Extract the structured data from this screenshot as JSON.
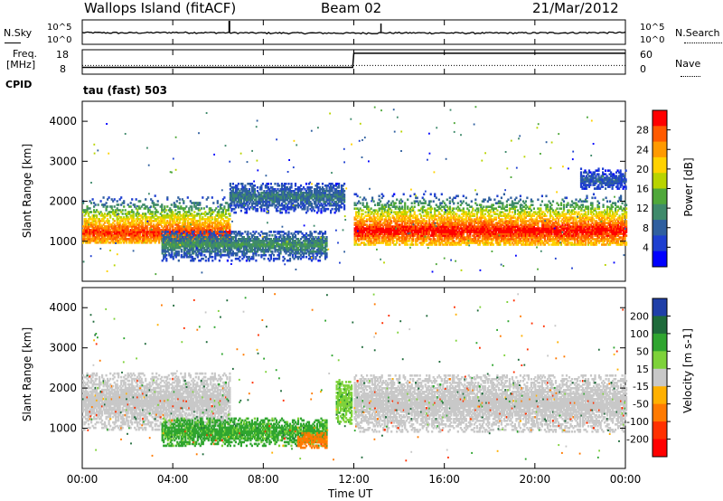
{
  "header": {
    "title": "Wallops Island (fitACF)",
    "beam": "Beam 02",
    "date": "21/Mar/2012"
  },
  "aux": {
    "nsky_label": "N.Sky",
    "nsearch_label": "N.Search",
    "noise_ticks": [
      "10^5",
      "10^0"
    ],
    "freq_label_line1": "Freq.",
    "freq_label_line2": "[MHz]",
    "freq_ticks": [
      "18",
      "8"
    ],
    "nave_label": "Nave",
    "nave_ticks": [
      "60",
      "0"
    ],
    "cpid_label": "CPID",
    "cpid_value": "tau (fast) 503"
  },
  "panels": {
    "ylabel": "Slant Range [km]",
    "xlabel": "Time UT"
  },
  "power_scale": {
    "label": "Power [dB]",
    "ticks": [
      "28",
      "24",
      "20",
      "16",
      "12",
      "8",
      "4"
    ],
    "colors": [
      "#ff0000",
      "#ff5a00",
      "#ff9a00",
      "#ffd200",
      "#b8d400",
      "#4fa83a",
      "#3f8a6b",
      "#2f5f9f",
      "#1e3fd0",
      "#0000ff"
    ]
  },
  "velocity_scale": {
    "label": "Velocity [m s-1]",
    "ticks": [
      "200",
      "100",
      "50",
      "15",
      "-15",
      "-50",
      "-100",
      "-200"
    ],
    "colors": [
      "#1f3fa8",
      "#1e6a3a",
      "#2fa52f",
      "#7ed23a",
      "#c8c8c8",
      "#ffb000",
      "#ff7a00",
      "#ff3000",
      "#ff0000"
    ]
  },
  "chart_data": [
    {
      "type": "line",
      "title": "N.Sky / N.Search",
      "x_ticks": [
        "00:00",
        "04:00",
        "08:00",
        "12:00",
        "16:00",
        "20:00",
        "00:00"
      ],
      "xlim": [
        0,
        24
      ],
      "series": [
        {
          "name": "N.Sky",
          "x": [
            0,
            2,
            4,
            6,
            8,
            10,
            12,
            14,
            16,
            18,
            20,
            22,
            24
          ],
          "y": [
            300,
            250,
            320,
            280,
            240,
            230,
            220,
            260,
            240,
            230,
            250,
            280,
            300
          ]
        }
      ],
      "ylim": [
        1,
        100000
      ],
      "yscale": "log"
    },
    {
      "type": "line",
      "title": "Freq. / Nave",
      "x": [
        0,
        11.95,
        12.0,
        24
      ],
      "series": [
        {
          "name": "Freq.",
          "x": [
            0,
            11.95,
            12.0,
            24
          ],
          "y": [
            10.5,
            10.5,
            16.5,
            16.5
          ]
        },
        {
          "name": "Nave",
          "x": [
            0,
            24
          ],
          "y": [
            20,
            20
          ]
        }
      ],
      "ylim_freq": [
        8,
        18
      ],
      "ylim_nave": [
        0,
        60
      ]
    },
    {
      "type": "heatmap",
      "title": "Power [dB]",
      "x_ticks": [
        "00:00",
        "04:00",
        "08:00",
        "12:00",
        "16:00",
        "20:00",
        "00:00"
      ],
      "y_ticks": [
        "1000",
        "2000",
        "3000",
        "4000"
      ],
      "xlim": [
        0,
        24
      ],
      "ylim": [
        0,
        4500
      ],
      "bands": [
        {
          "start": 0.0,
          "end": 6.5,
          "range_low": 950,
          "range_high": 2350,
          "peak": 1200,
          "power": 26
        },
        {
          "start": 3.5,
          "end": 10.8,
          "range_low": 500,
          "range_high": 1250,
          "peak": 900,
          "power": 10
        },
        {
          "start": 6.5,
          "end": 11.6,
          "range_low": 1700,
          "range_high": 2450,
          "peak": 2100,
          "power": 8
        },
        {
          "start": 12.0,
          "end": 24.0,
          "range_low": 900,
          "range_high": 2300,
          "peak": 1250,
          "power": 28
        },
        {
          "start": 22.0,
          "end": 24.0,
          "range_low": 2300,
          "range_high": 2800,
          "peak": 2500,
          "power": 6
        }
      ],
      "colorbar_ticks": [
        28,
        24,
        20,
        16,
        12,
        8,
        4
      ]
    },
    {
      "type": "heatmap",
      "title": "Velocity [m s-1]",
      "x_ticks": [
        "00:00",
        "04:00",
        "08:00",
        "12:00",
        "16:00",
        "20:00",
        "00:00"
      ],
      "y_ticks": [
        "1000",
        "2000",
        "3000",
        "4000"
      ],
      "xlim": [
        0,
        24
      ],
      "ylim": [
        0,
        4500
      ],
      "bands": [
        {
          "start": 0.0,
          "end": 6.5,
          "range_low": 950,
          "range_high": 2350,
          "velocity": 0
        },
        {
          "start": 3.5,
          "end": 10.8,
          "range_low": 550,
          "range_high": 1250,
          "velocity": 60
        },
        {
          "start": 9.5,
          "end": 10.8,
          "range_low": 500,
          "range_high": 900,
          "velocity": -80
        },
        {
          "start": 11.2,
          "end": 11.9,
          "range_low": 1100,
          "range_high": 2200,
          "velocity": 40
        },
        {
          "start": 12.0,
          "end": 24.0,
          "range_low": 900,
          "range_high": 2300,
          "velocity": 0
        }
      ],
      "colorbar_ticks": [
        200,
        100,
        50,
        15,
        -15,
        -50,
        -100,
        -200
      ]
    }
  ]
}
